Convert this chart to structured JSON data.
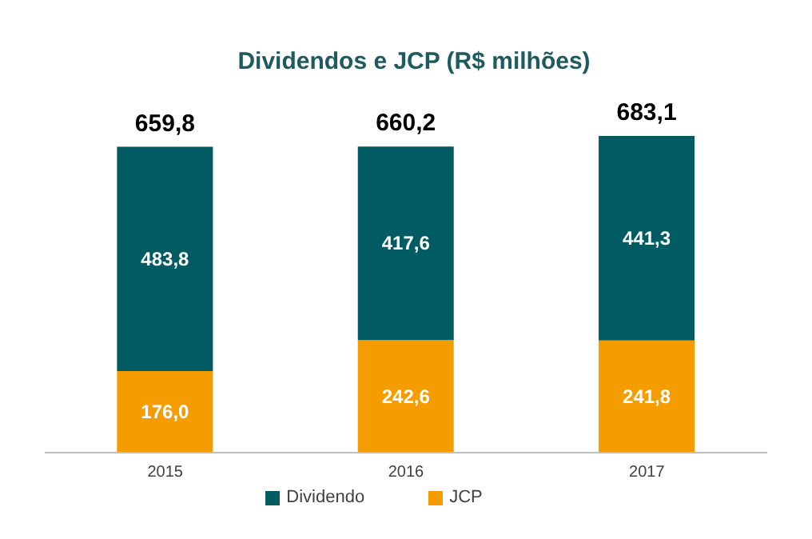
{
  "chart_data": {
    "type": "bar",
    "title": "Dividendos e JCP (R$ milhões)",
    "categories": [
      "2015",
      "2016",
      "2017"
    ],
    "stacked": true,
    "legend": "bottom",
    "grid": false,
    "series": [
      {
        "name": "JCP",
        "color": "#f59c00",
        "values": [
          176.0,
          242.6,
          241.8
        ],
        "value_labels": [
          "176,0",
          "242,6",
          "241,8"
        ]
      },
      {
        "name": "Dividendo",
        "color": "#005b63",
        "values": [
          483.8,
          417.6,
          441.3
        ],
        "value_labels": [
          "483,8",
          "417,6",
          "441,3"
        ]
      }
    ],
    "totals": [
      "659,8",
      "660,2",
      "683,1"
    ]
  }
}
